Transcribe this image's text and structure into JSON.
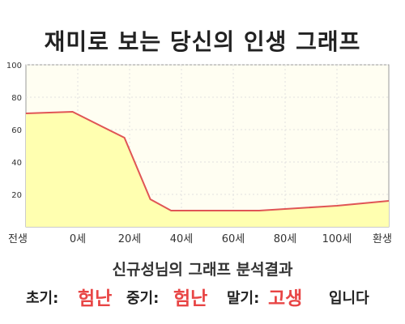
{
  "page": {
    "title": "재미로 보는 당신의 인생 그래프"
  },
  "chart_data": {
    "type": "area",
    "x_ticks": [
      {
        "x": 0,
        "label": "전생"
      },
      {
        "x": 10,
        "label": "0세"
      },
      {
        "x": 20,
        "label": "20세"
      },
      {
        "x": 30,
        "label": "40세"
      },
      {
        "x": 40,
        "label": "60세"
      },
      {
        "x": 50,
        "label": "80세"
      },
      {
        "x": 60,
        "label": "100세"
      },
      {
        "x": 70,
        "label": "환생"
      }
    ],
    "xlim": [
      0,
      70
    ],
    "ylim": [
      0,
      100
    ],
    "y_ticks": [
      20,
      40,
      60,
      80,
      100
    ],
    "points": [
      {
        "x": 0,
        "y": 70
      },
      {
        "x": 9,
        "y": 71
      },
      {
        "x": 19,
        "y": 55
      },
      {
        "x": 24,
        "y": 17
      },
      {
        "x": 28,
        "y": 10
      },
      {
        "x": 45,
        "y": 10
      },
      {
        "x": 60,
        "y": 13
      },
      {
        "x": 70,
        "y": 16
      }
    ],
    "grid": true,
    "colors": {
      "line": "#e05555",
      "fill": "#ffffb0",
      "plot_bg": "#fffef2",
      "grid": "#e0e0e0"
    }
  },
  "result": {
    "heading": "신규성님의 그래프 분석결과",
    "early_label": "초기:",
    "early_value": "험난",
    "middle_label": "중기:",
    "middle_value": "험난",
    "late_label": "말기:",
    "late_value": "고생",
    "suffix": "입니다"
  }
}
